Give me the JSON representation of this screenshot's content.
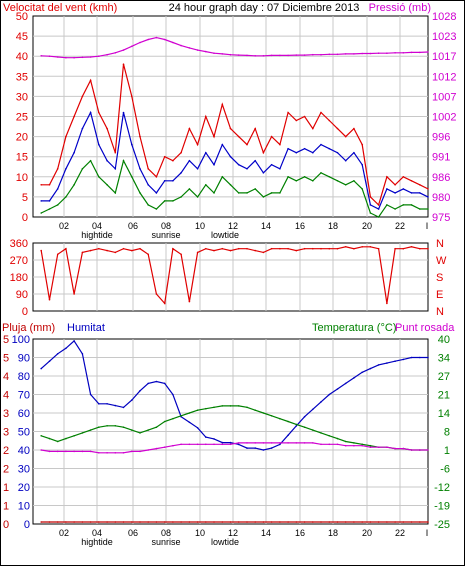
{
  "colors": {
    "wind": "#e00000",
    "avg_wind": "#0000c8",
    "gust_low": "#008000",
    "pressure": "#d000d0",
    "rain": "#c00000",
    "humidity": "#0000c0",
    "temperature": "#008000",
    "dew": "#d000d0",
    "grid": "#c8c8c8"
  },
  "chart_data": [
    {
      "type": "line",
      "title": "24 hour graph day : 07 Diciembre 2013",
      "left_label": "Velocitat del vent (kmh)",
      "right_label": "Pressió (mb)",
      "left_ticks": [
        "0",
        "5",
        "10",
        "15",
        "20",
        "25",
        "30",
        "35",
        "40",
        "45",
        "50"
      ],
      "right_ticks": [
        "975",
        "980",
        "986",
        "991",
        "996",
        "1002",
        "1007",
        "1012",
        "1017",
        "1023",
        "1028"
      ],
      "x_ticks": [
        "02",
        "04",
        "06",
        "08",
        "10",
        "12",
        "14",
        "16",
        "18",
        "20",
        "22"
      ],
      "events": [
        "hightide",
        "sunrise",
        "lowtide"
      ],
      "ylim": [
        0,
        50
      ],
      "y2lim": [
        975,
        1028
      ],
      "x": [
        0,
        0.5,
        1,
        1.5,
        2,
        2.5,
        3,
        3.5,
        4,
        4.5,
        5,
        5.5,
        6,
        6.5,
        7,
        7.5,
        8,
        8.5,
        9,
        9.5,
        10,
        10.5,
        11,
        11.5,
        12,
        12.5,
        13,
        13.5,
        14,
        14.5,
        15,
        15.5,
        16,
        16.5,
        17,
        17.5,
        18,
        18.5,
        19,
        19.5,
        20,
        20.5,
        21,
        21.5,
        22,
        22.5,
        23,
        23.5
      ],
      "series": [
        {
          "name": "gust",
          "values": [
            8,
            8,
            12,
            20,
            25,
            30,
            34,
            26,
            22,
            16,
            38,
            30,
            20,
            12,
            10,
            15,
            14,
            16,
            22,
            18,
            25,
            20,
            28,
            22,
            20,
            18,
            22,
            16,
            20,
            18,
            26,
            24,
            25,
            22,
            26,
            24,
            22,
            20,
            22,
            18,
            5,
            3,
            10,
            8,
            10,
            9,
            8,
            7
          ]
        },
        {
          "name": "average",
          "values": [
            4,
            4,
            7,
            12,
            16,
            22,
            26,
            18,
            14,
            12,
            26,
            18,
            12,
            8,
            6,
            9,
            9,
            11,
            14,
            12,
            16,
            13,
            18,
            15,
            13,
            12,
            14,
            11,
            13,
            12,
            17,
            16,
            17,
            16,
            18,
            17,
            16,
            14,
            16,
            13,
            3,
            2,
            7,
            6,
            7,
            6,
            6,
            5
          ]
        },
        {
          "name": "low",
          "values": [
            1,
            2,
            3,
            5,
            8,
            12,
            14,
            10,
            8,
            6,
            14,
            10,
            6,
            3,
            2,
            4,
            4,
            5,
            7,
            5,
            8,
            6,
            10,
            8,
            6,
            6,
            7,
            5,
            6,
            6,
            10,
            9,
            10,
            9,
            11,
            10,
            9,
            8,
            9,
            7,
            1,
            0,
            3,
            2,
            3,
            3,
            2,
            2
          ]
        },
        {
          "name": "pressure",
          "values": [
            1017.5,
            1017.4,
            1017.2,
            1017.0,
            1017.0,
            1017.1,
            1017.2,
            1017.4,
            1017.8,
            1018.3,
            1019.0,
            1020.0,
            1021.0,
            1021.8,
            1022.3,
            1021.8,
            1021.0,
            1020.2,
            1019.6,
            1019.0,
            1018.6,
            1018.2,
            1018.0,
            1017.8,
            1017.7,
            1017.6,
            1017.5,
            1017.5,
            1017.6,
            1017.6,
            1017.6,
            1017.7,
            1017.7,
            1017.8,
            1017.8,
            1017.9,
            1017.9,
            1018.0,
            1018.0,
            1018.1,
            1018.1,
            1018.2,
            1018.2,
            1018.3,
            1018.3,
            1018.4,
            1018.4,
            1018.5
          ]
        }
      ]
    },
    {
      "type": "line",
      "left_ticks": [
        "360",
        "270",
        "180",
        "90",
        "0"
      ],
      "right_ticks": [
        "N",
        "W",
        "S",
        "E",
        "N"
      ],
      "ylim": [
        0,
        360
      ],
      "x": [
        0,
        0.5,
        1,
        1.5,
        2,
        2.5,
        3,
        3.5,
        4,
        4.5,
        5,
        5.5,
        6,
        6.5,
        7,
        7.5,
        8,
        8.5,
        9,
        9.5,
        10,
        10.5,
        11,
        11.5,
        12,
        12.5,
        13,
        13.5,
        14,
        14.5,
        15,
        15.5,
        16,
        16.5,
        17,
        17.5,
        18,
        18.5,
        19,
        19.5,
        20,
        20.5,
        21,
        21.5,
        22,
        22.5,
        23,
        23.5
      ],
      "series": [
        {
          "name": "direction",
          "values": [
            320,
            60,
            300,
            330,
            90,
            310,
            320,
            330,
            320,
            310,
            330,
            320,
            330,
            300,
            90,
            40,
            330,
            300,
            50,
            310,
            330,
            320,
            330,
            320,
            330,
            330,
            320,
            310,
            330,
            330,
            330,
            320,
            330,
            330,
            330,
            330,
            330,
            340,
            330,
            340,
            340,
            330,
            40,
            330,
            330,
            340,
            330,
            330
          ]
        }
      ]
    },
    {
      "type": "line",
      "left_label": "Pluja (mm)",
      "humidity_label": "Humitat",
      "right_label": "Temperatura (°C)",
      "dew_label": "Punt rosada",
      "rain_ticks": [
        "0",
        "1",
        "1",
        "2",
        "2",
        "3",
        "3",
        "4",
        "4",
        "5",
        "5"
      ],
      "humidity_ticks": [
        "0",
        "10",
        "20",
        "30",
        "40",
        "50",
        "60",
        "70",
        "80",
        "90",
        "100"
      ],
      "right_ticks": [
        "-25",
        "-19",
        "-12",
        "-6",
        "1",
        "8",
        "14",
        "21",
        "27",
        "34",
        "40"
      ],
      "x_ticks": [
        "02",
        "04",
        "06",
        "08",
        "10",
        "12",
        "14",
        "16",
        "18",
        "20",
        "22"
      ],
      "events": [
        "hightide",
        "sunrise",
        "lowtide"
      ],
      "humidity_lim": [
        0,
        100
      ],
      "temp_lim": [
        -25,
        40
      ],
      "x": [
        0,
        0.5,
        1,
        1.5,
        2,
        2.5,
        3,
        3.5,
        4,
        4.5,
        5,
        5.5,
        6,
        6.5,
        7,
        7.5,
        8,
        8.5,
        9,
        9.5,
        10,
        10.5,
        11,
        11.5,
        12,
        12.5,
        13,
        13.5,
        14,
        14.5,
        15,
        15.5,
        16,
        16.5,
        17,
        17.5,
        18,
        18.5,
        19,
        19.5,
        20,
        20.5,
        21,
        21.5,
        22,
        22.5,
        23,
        23.5
      ],
      "series": [
        {
          "name": "humidity",
          "values": [
            84,
            88,
            92,
            95,
            99,
            92,
            70,
            65,
            65,
            64,
            63,
            67,
            72,
            76,
            77,
            76,
            70,
            58,
            55,
            52,
            47,
            46,
            44,
            44,
            43,
            41,
            41,
            40,
            41,
            43,
            48,
            53,
            58,
            62,
            66,
            70,
            73,
            76,
            79,
            82,
            84,
            86,
            87,
            88,
            89,
            90,
            90,
            90
          ]
        },
        {
          "name": "temperature",
          "values": [
            6,
            5,
            4,
            5,
            6,
            7,
            8,
            9,
            9.5,
            9.5,
            9,
            8,
            7,
            8,
            9,
            11,
            12,
            13,
            14,
            15,
            15.5,
            16,
            16.5,
            16.5,
            16.5,
            16,
            15,
            14,
            13,
            12,
            11,
            10,
            9,
            8,
            7,
            6,
            5,
            4,
            3.5,
            3,
            2.5,
            2,
            2,
            1.5,
            1.5,
            1,
            1,
            1
          ]
        },
        {
          "name": "dew",
          "values": [
            1,
            0.5,
            0.5,
            0.5,
            0.5,
            0.5,
            0.5,
            0,
            0,
            0,
            0,
            0.5,
            0.5,
            1,
            1.5,
            2,
            2.5,
            3,
            3,
            3,
            3,
            3,
            3,
            3,
            3.5,
            3.5,
            3.5,
            3.5,
            3.5,
            3.5,
            3.5,
            3.5,
            3.5,
            3.5,
            3,
            3,
            3,
            2.5,
            2.5,
            2.5,
            2,
            2,
            2,
            1.5,
            1.5,
            1,
            1,
            1
          ]
        },
        {
          "name": "rain",
          "values": [
            0,
            0,
            0,
            0,
            0,
            0,
            0,
            0,
            0,
            0,
            0,
            0,
            0,
            0,
            0,
            0,
            0,
            0,
            0,
            0,
            0,
            0,
            0,
            0,
            0,
            0,
            0,
            0,
            0,
            0,
            0,
            0,
            0,
            0,
            0,
            0,
            0,
            0,
            0,
            0,
            0,
            0,
            0,
            0,
            0,
            0,
            0,
            0
          ]
        }
      ]
    }
  ]
}
